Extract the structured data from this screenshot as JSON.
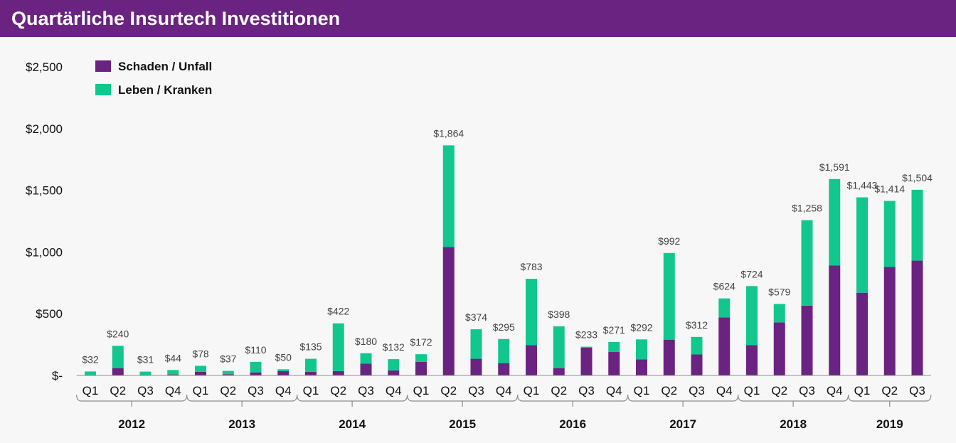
{
  "header": {
    "title": "Quartärliche Insurtech Investitionen"
  },
  "colors": {
    "header_bg": "#6a2380",
    "schaden": "#6a2380",
    "leben": "#12c78d",
    "axis": "#8c8c8c"
  },
  "chart_data": {
    "type": "bar",
    "stacked": true,
    "title": "Quartärliche Insurtech Investitionen",
    "xlabel": "",
    "ylabel": "",
    "ylim": [
      0,
      2500
    ],
    "yticks": [
      0,
      500,
      1000,
      1500,
      2000,
      2500
    ],
    "ytick_labels": [
      "$-",
      "$500",
      "$1,000",
      "$1,500",
      "$2,000",
      "$2,500"
    ],
    "grid": false,
    "legend_position": "top-left",
    "categories": [
      "Q1",
      "Q2",
      "Q3",
      "Q4",
      "Q1",
      "Q2",
      "Q3",
      "Q4",
      "Q1",
      "Q2",
      "Q3",
      "Q4",
      "Q1",
      "Q2",
      "Q3",
      "Q4",
      "Q1",
      "Q2",
      "Q3",
      "Q4",
      "Q1",
      "Q2",
      "Q3",
      "Q4",
      "Q1",
      "Q2",
      "Q3",
      "Q4",
      "Q1",
      "Q2",
      "Q3"
    ],
    "groups": [
      {
        "label": "2012",
        "count": 4
      },
      {
        "label": "2013",
        "count": 4
      },
      {
        "label": "2014",
        "count": 4
      },
      {
        "label": "2015",
        "count": 4
      },
      {
        "label": "2016",
        "count": 4
      },
      {
        "label": "2017",
        "count": 4
      },
      {
        "label": "2018",
        "count": 4
      },
      {
        "label": "2019",
        "count": 3
      }
    ],
    "series": [
      {
        "name": "Schaden / Unfall",
        "color": "#6a2380",
        "values": [
          5,
          60,
          5,
          8,
          30,
          10,
          25,
          35,
          30,
          35,
          95,
          40,
          110,
          1040,
          135,
          100,
          245,
          60,
          225,
          190,
          130,
          290,
          170,
          470,
          245,
          430,
          565,
          890,
          670,
          880,
          930
        ]
      },
      {
        "name": "Leben / Kranken",
        "color": "#12c78d",
        "values": [
          27,
          180,
          26,
          36,
          48,
          27,
          85,
          15,
          105,
          387,
          85,
          92,
          62,
          824,
          239,
          195,
          538,
          338,
          8,
          81,
          162,
          702,
          142,
          154,
          479,
          149,
          693,
          701,
          773,
          534,
          574
        ]
      }
    ],
    "totals": [
      32,
      240,
      31,
      44,
      78,
      37,
      110,
      50,
      135,
      422,
      180,
      132,
      172,
      1864,
      374,
      295,
      783,
      398,
      233,
      271,
      292,
      992,
      312,
      624,
      724,
      579,
      1258,
      1591,
      1443,
      1414,
      1504
    ],
    "total_labels": [
      "$32",
      "$240",
      "$31",
      "$44",
      "$78",
      "$37",
      "$110",
      "$50",
      "$135",
      "$422",
      "$180",
      "$132",
      "$172",
      "$1,864",
      "$374",
      "$295",
      "$783",
      "$398",
      "$233",
      "$271",
      "$292",
      "$992",
      "$312",
      "$624",
      "$724",
      "$579",
      "$1,258",
      "$1,591",
      "$1,443",
      "$1,414",
      "$1,504"
    ]
  }
}
